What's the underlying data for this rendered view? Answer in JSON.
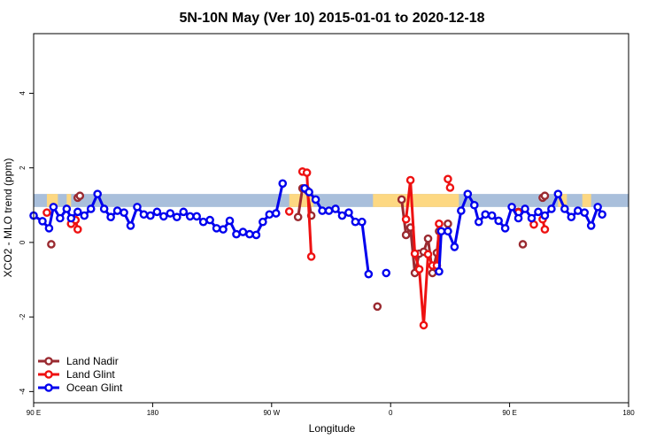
{
  "chart_data": {
    "type": "line",
    "title": "5N-10N May (Ver 10)   2015-01-01 to 2020-12-18",
    "xlabel": "Longitude",
    "ylabel": "XCO2 - MLO trend (ppm)",
    "xlim": [
      -90,
      180
    ],
    "ylim": [
      -4.3,
      5.6
    ],
    "x_ticks": [
      {
        "value": -90,
        "label": "90 E"
      },
      {
        "value": -36,
        "label": "180"
      },
      {
        "value": 18,
        "label": "90 W"
      },
      {
        "value": 72,
        "label": "0"
      },
      {
        "value": 126,
        "label": "90 E"
      },
      {
        "value": 180,
        "label": "180"
      }
    ],
    "y_ticks": [
      {
        "value": -4,
        "label": "-4"
      },
      {
        "value": -2,
        "label": "-2"
      },
      {
        "value": 0,
        "label": "0"
      },
      {
        "value": 2,
        "label": "2"
      },
      {
        "value": 4,
        "label": "4"
      }
    ],
    "legend_position": "bottom-left",
    "background_band": {
      "y_range": [
        0.95,
        1.3
      ],
      "color": "#a9bfdb",
      "land_color": "#fdd882",
      "land_x_ranges": [
        [
          -84,
          -79
        ],
        [
          -75,
          -73
        ],
        [
          26,
          37
        ],
        [
          64,
          103
        ],
        [
          148,
          152
        ],
        [
          159,
          163
        ]
      ]
    },
    "series": [
      {
        "name": "Land Nadir",
        "color": "#9a2a30",
        "segments": [
          [
            [
              -82,
              -0.05
            ]
          ],
          [
            [
              -70,
              1.2
            ],
            [
              -69,
              1.25
            ]
          ],
          [
            [
              30,
              0.68
            ],
            [
              32,
              1.45
            ],
            [
              34,
              1.4
            ],
            [
              36,
              0.72
            ]
          ],
          [
            [
              66,
              -1.72
            ]
          ],
          [
            [
              77,
              1.15
            ],
            [
              79,
              0.2
            ],
            [
              81,
              0.4
            ],
            [
              83,
              -0.82
            ],
            [
              85,
              -0.3
            ],
            [
              87,
              -0.25
            ],
            [
              89,
              0.1
            ],
            [
              91,
              -0.82
            ],
            [
              93,
              -0.28
            ],
            [
              94,
              0.3
            ]
          ],
          [
            [
              98,
              0.5
            ]
          ],
          [
            [
              130,
              0.82
            ]
          ],
          [
            [
              132,
              -0.05
            ]
          ],
          [
            [
              141,
              1.2
            ],
            [
              142,
              1.25
            ]
          ]
        ]
      },
      {
        "name": "Land Glint",
        "color": "#ee1111",
        "segments": [
          [
            [
              -84,
              0.8
            ]
          ],
          [
            [
              -73,
              0.5
            ],
            [
              -71,
              0.6
            ],
            [
              -70,
              0.35
            ]
          ],
          [
            [
              26,
              0.83
            ]
          ],
          [
            [
              32,
              1.9
            ],
            [
              34,
              1.87
            ],
            [
              36,
              -0.38
            ]
          ],
          [
            [
              79,
              0.62
            ],
            [
              81,
              1.67
            ],
            [
              83,
              -0.3
            ],
            [
              85,
              -0.72
            ],
            [
              87,
              -2.22
            ],
            [
              89,
              -0.32
            ],
            [
              91,
              -0.62
            ],
            [
              93,
              -0.62
            ],
            [
              94,
              0.5
            ]
          ],
          [
            [
              98,
              1.7
            ],
            [
              99,
              1.47
            ]
          ],
          [
            [
              130,
              0.8
            ]
          ],
          [
            [
              137,
              0.48
            ]
          ],
          [
            [
              141,
              0.62
            ],
            [
              142,
              0.35
            ]
          ]
        ]
      },
      {
        "name": "Ocean Glint",
        "color": "#0000ee",
        "segments": [
          [
            [
              -90,
              0.72
            ],
            [
              -86,
              0.57
            ],
            [
              -83,
              0.38
            ],
            [
              -81,
              0.95
            ],
            [
              -78,
              0.65
            ],
            [
              -75,
              0.9
            ],
            [
              -73,
              0.65
            ],
            [
              -70,
              0.82
            ],
            [
              -67,
              0.72
            ],
            [
              -64,
              0.9
            ],
            [
              -61,
              1.3
            ],
            [
              -58,
              0.9
            ],
            [
              -55,
              0.68
            ],
            [
              -52,
              0.85
            ],
            [
              -49,
              0.8
            ],
            [
              -46,
              0.45
            ],
            [
              -43,
              0.95
            ],
            [
              -40,
              0.75
            ],
            [
              -37,
              0.72
            ],
            [
              -34,
              0.82
            ],
            [
              -31,
              0.7
            ],
            [
              -28,
              0.78
            ],
            [
              -25,
              0.68
            ],
            [
              -22,
              0.82
            ],
            [
              -19,
              0.7
            ],
            [
              -16,
              0.7
            ],
            [
              -13,
              0.55
            ],
            [
              -10,
              0.6
            ],
            [
              -7,
              0.38
            ],
            [
              -4,
              0.35
            ],
            [
              -1,
              0.58
            ],
            [
              2,
              0.22
            ],
            [
              5,
              0.28
            ],
            [
              8,
              0.22
            ],
            [
              11,
              0.2
            ],
            [
              14,
              0.55
            ],
            [
              17,
              0.75
            ],
            [
              20,
              0.78
            ],
            [
              23,
              1.58
            ]
          ],
          [
            [
              33,
              1.45
            ],
            [
              35,
              1.35
            ],
            [
              38,
              1.15
            ],
            [
              41,
              0.85
            ],
            [
              44,
              0.85
            ],
            [
              47,
              0.9
            ],
            [
              50,
              0.72
            ],
            [
              53,
              0.8
            ],
            [
              56,
              0.55
            ],
            [
              59,
              0.55
            ],
            [
              62,
              -0.85
            ]
          ],
          [
            [
              70,
              -0.82
            ]
          ],
          [
            [
              94,
              -0.78
            ],
            [
              95,
              0.3
            ],
            [
              98,
              0.3
            ],
            [
              101,
              -0.12
            ],
            [
              104,
              0.85
            ],
            [
              107,
              1.3
            ],
            [
              110,
              1.0
            ],
            [
              112,
              0.55
            ],
            [
              115,
              0.75
            ],
            [
              118,
              0.72
            ],
            [
              121,
              0.58
            ],
            [
              124,
              0.38
            ],
            [
              127,
              0.95
            ],
            [
              130,
              0.65
            ],
            [
              133,
              0.9
            ],
            [
              136,
              0.65
            ],
            [
              139,
              0.82
            ],
            [
              142,
              0.72
            ],
            [
              145,
              0.9
            ],
            [
              148,
              1.3
            ],
            [
              151,
              0.9
            ],
            [
              154,
              0.68
            ],
            [
              157,
              0.85
            ],
            [
              160,
              0.8
            ],
            [
              163,
              0.45
            ],
            [
              166,
              0.95
            ],
            [
              168,
              0.75
            ]
          ]
        ]
      }
    ]
  }
}
